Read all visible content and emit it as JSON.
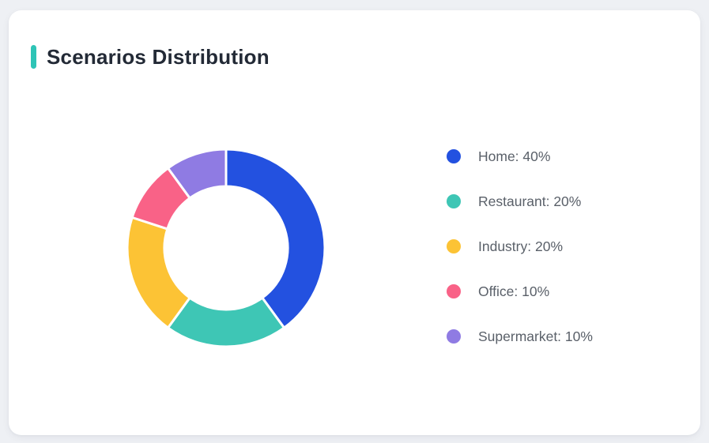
{
  "page": {
    "background": "#eef0f4"
  },
  "card": {
    "title": "Scenarios Distribution",
    "accent_color": "#2ec4b6",
    "background": "#ffffff",
    "title_color": "#232a36"
  },
  "chart_data": {
    "type": "pie",
    "subtype": "donut",
    "title": "Scenarios Distribution",
    "categories": [
      "Home",
      "Restaurant",
      "Industry",
      "Office",
      "Supermarket"
    ],
    "values": [
      40,
      20,
      20,
      10,
      10
    ],
    "unit": "%",
    "colors": [
      "#2351e0",
      "#3ec6b5",
      "#fcc335",
      "#f96287",
      "#8f7be3"
    ],
    "legend_labels": [
      "Home: 40%",
      "Restaurant: 20%",
      "Industry: 20%",
      "Office: 10%",
      "Supermarket: 10%"
    ],
    "legend_position": "right",
    "start_angle_deg": 0,
    "direction": "clockwise",
    "outer_radius_px": 125,
    "inner_radius_px": 78,
    "segment_border_color": "#ffffff",
    "segment_border_px": 3
  }
}
